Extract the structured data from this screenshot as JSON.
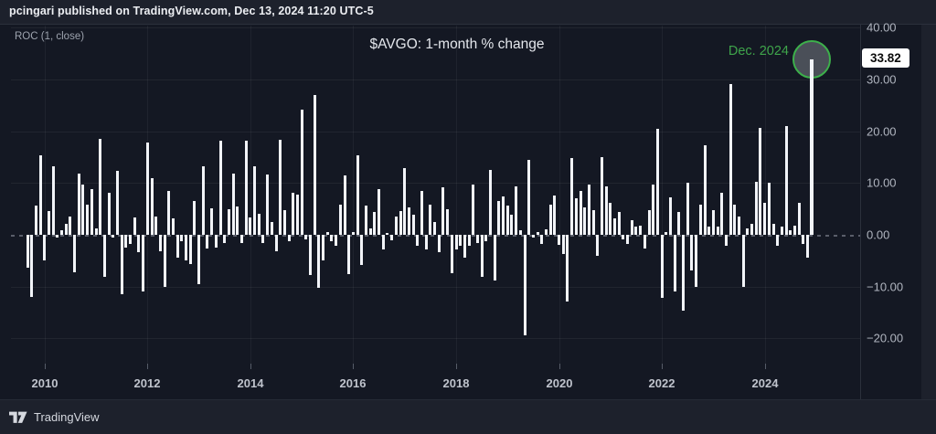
{
  "header": {
    "attribution": "pcingari published on TradingView.com, Dec 13, 2024 11:20 UTC-5",
    "indicator_label": "ROC (1, close)"
  },
  "title": "$AVGO: 1-month % change",
  "annotation": {
    "label": "Dec. 2024",
    "value_label": "33.82"
  },
  "footer": {
    "brand": "TradingView"
  },
  "colors": {
    "background": "#141823",
    "panel": "#1d212c",
    "bar": "#f2f4f8",
    "accent_green": "#3fa54b",
    "circle_fill": "#4a4f58",
    "badge_bg": "#ffffff",
    "badge_text": "#0b0b0b",
    "grid": "rgba(255,255,255,0.06)",
    "text_primary": "#eceef2",
    "text_secondary": "#b0b5bf"
  },
  "chart_data": {
    "type": "bar",
    "title": "$AVGO: 1-month % change",
    "indicator": "ROC (1, close)",
    "frequency": "monthly",
    "x_start": "2009-09",
    "x_end": "2024-12",
    "ylim": [
      -24,
      42
    ],
    "grid": true,
    "zero_line": "dashed",
    "legend_position": "none",
    "y_ticks": [
      {
        "label": "40.00",
        "value": 40
      },
      {
        "label": "30.00",
        "value": 30
      },
      {
        "label": "20.00",
        "value": 20
      },
      {
        "label": "10.00",
        "value": 10
      },
      {
        "label": "0.00",
        "value": 0
      },
      {
        "label": "−10.00",
        "value": -10
      },
      {
        "label": "−20.00",
        "value": -20
      }
    ],
    "x_ticks": [
      {
        "label": "2010",
        "index": 4
      },
      {
        "label": "2012",
        "index": 28
      },
      {
        "label": "2014",
        "index": 52
      },
      {
        "label": "2016",
        "index": 76
      },
      {
        "label": "2018",
        "index": 100
      },
      {
        "label": "2020",
        "index": 124
      },
      {
        "label": "2022",
        "index": 148
      },
      {
        "label": "2024",
        "index": 172
      }
    ],
    "highlight": {
      "label": "Dec. 2024",
      "value": 33.82,
      "index": 183
    },
    "values": [
      -6.3,
      -12.0,
      5.7,
      15.4,
      -4.9,
      4.5,
      13.3,
      -0.6,
      0.9,
      2.1,
      3.5,
      -7.2,
      11.8,
      9.7,
      5.9,
      8.8,
      1.2,
      18.5,
      -8.2,
      8.2,
      -0.5,
      12.4,
      -11.5,
      -2.4,
      -1.8,
      3.4,
      -3.4,
      -10.9,
      17.8,
      10.9,
      3.5,
      -3.2,
      -10.0,
      8.4,
      3.2,
      -4.4,
      -1.2,
      -5.0,
      -5.6,
      6.6,
      -9.6,
      13.2,
      -2.6,
      5.1,
      -2.4,
      18.2,
      -1.5,
      5.0,
      11.8,
      5.5,
      -1.5,
      18.2,
      3.4,
      13.2,
      4.1,
      -1.5,
      11.6,
      2.4,
      -3.2,
      18.4,
      4.7,
      -1.2,
      8.2,
      7.8,
      24.2,
      -0.8,
      -7.8,
      26.9,
      -10.3,
      -5.0,
      0.6,
      -1.2,
      -2.1,
      5.9,
      11.5,
      -7.6,
      0.6,
      15.4,
      -5.9,
      5.7,
      1.2,
      4.4,
      8.8,
      -2.9,
      0.4,
      -1.0,
      3.5,
      4.6,
      12.9,
      5.3,
      3.8,
      -2.1,
      8.4,
      -2.9,
      5.9,
      2.4,
      -3.4,
      9.1,
      5.0,
      -7.4,
      -2.9,
      -2.1,
      -4.4,
      -2.1,
      9.7,
      -1.5,
      -8.2,
      -1.2,
      12.6,
      -8.8,
      6.5,
      7.4,
      5.6,
      3.8,
      9.4,
      0.9,
      -19.4,
      14.5,
      -0.6,
      0.6,
      -1.8,
      1.0,
      5.9,
      7.5,
      -2.0,
      -3.7,
      -12.8,
      14.9,
      7.1,
      8.5,
      5.3,
      9.7,
      4.7,
      -4.1,
      15.0,
      9.4,
      6.2,
      3.2,
      4.4,
      -0.9,
      -1.8,
      2.9,
      1.5,
      1.8,
      -2.6,
      4.7,
      9.7,
      20.4,
      -12.1,
      0.6,
      7.2,
      -10.9,
      4.4,
      -14.7,
      10.0,
      -6.8,
      -10.0,
      5.9,
      17.2,
      1.5,
      4.7,
      1.5,
      8.1,
      -2.1,
      29.1,
      5.9,
      3.5,
      -10.0,
      1.2,
      2.1,
      10.3,
      20.6,
      6.2,
      10.0,
      2.1,
      -2.1,
      1.5,
      20.9,
      0.9,
      1.8,
      6.2,
      -1.8,
      -4.4,
      33.82
    ]
  }
}
